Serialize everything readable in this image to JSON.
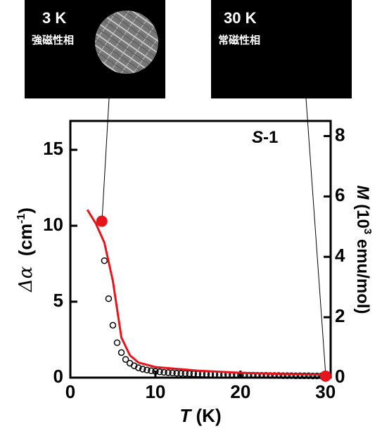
{
  "chart_data": {
    "type": "scatter",
    "annotations": [
      {
        "title": "3 K",
        "text": "強磁性相"
      },
      {
        "title": "30 K",
        "text": "常磁性相"
      }
    ],
    "sample_label": {
      "italic": "S",
      "rest": "-1"
    },
    "x_label": {
      "italic": "T",
      "rest": " (K)"
    },
    "y_label": {
      "symbol": "Δα",
      "text": "  (cm",
      "sup": "-1",
      "end": ")"
    },
    "y2_label": {
      "italic": "M",
      "text": " (10",
      "sup": "3",
      "end": " emu/mol)"
    },
    "xlim": [
      0,
      30.6
    ],
    "xticks": [
      0,
      10,
      20,
      30
    ],
    "ylim": [
      0,
      16.9
    ],
    "yticks": [
      0,
      5,
      10,
      15
    ],
    "y2lim": [
      0,
      8.5
    ],
    "y2ticks": [
      0,
      2,
      4,
      6,
      8
    ],
    "series": [
      {
        "style": "open-markers",
        "color": "#000000",
        "x": [
          4,
          4.5,
          5,
          5.5,
          6,
          6.5,
          7,
          7.5,
          8,
          8.5,
          9,
          9.5,
          10,
          10.5,
          11,
          11.5,
          12,
          12.5,
          13,
          13.5,
          14,
          14.5,
          15,
          15.5,
          16,
          16.5,
          17,
          17.5,
          18,
          18.5,
          19,
          19.5,
          20,
          20.5,
          21,
          21.5,
          22,
          22.5,
          23,
          23.5,
          24,
          24.5,
          25,
          25.5,
          26,
          26.5,
          27,
          27.5,
          28,
          28.5,
          29,
          29.5,
          30
        ],
        "values": [
          7.7,
          5.2,
          3.45,
          2.3,
          1.65,
          1.2,
          0.95,
          0.78,
          0.65,
          0.56,
          0.5,
          0.45,
          0.41,
          0.38,
          0.35,
          0.33,
          0.31,
          0.29,
          0.28,
          0.27,
          0.26,
          0.25,
          0.24,
          0.23,
          0.22,
          0.21,
          0.21,
          0.2,
          0.19,
          0.19,
          0.18,
          0.18,
          0.17,
          0.17,
          0.16,
          0.16,
          0.15,
          0.15,
          0.15,
          0.14,
          0.14,
          0.14,
          0.13,
          0.13,
          0.13,
          0.12,
          0.12,
          0.12,
          0.12,
          0.11,
          0.11,
          0.11,
          0.1
        ]
      },
      {
        "style": "line",
        "color": "#e8141c",
        "axis": "y2",
        "x": [
          2,
          3,
          4,
          5,
          5.5,
          6,
          7,
          8,
          10,
          15,
          20,
          25,
          30
        ],
        "values": [
          5.56,
          5.1,
          4.47,
          3.2,
          2.26,
          1.33,
          0.74,
          0.5,
          0.35,
          0.23,
          0.16,
          0.12,
          0.1
        ]
      },
      {
        "style": "filled-markers",
        "color": "#e8141c",
        "x": [
          3.7,
          30
        ],
        "values": [
          10.3,
          0.1
        ]
      }
    ]
  }
}
